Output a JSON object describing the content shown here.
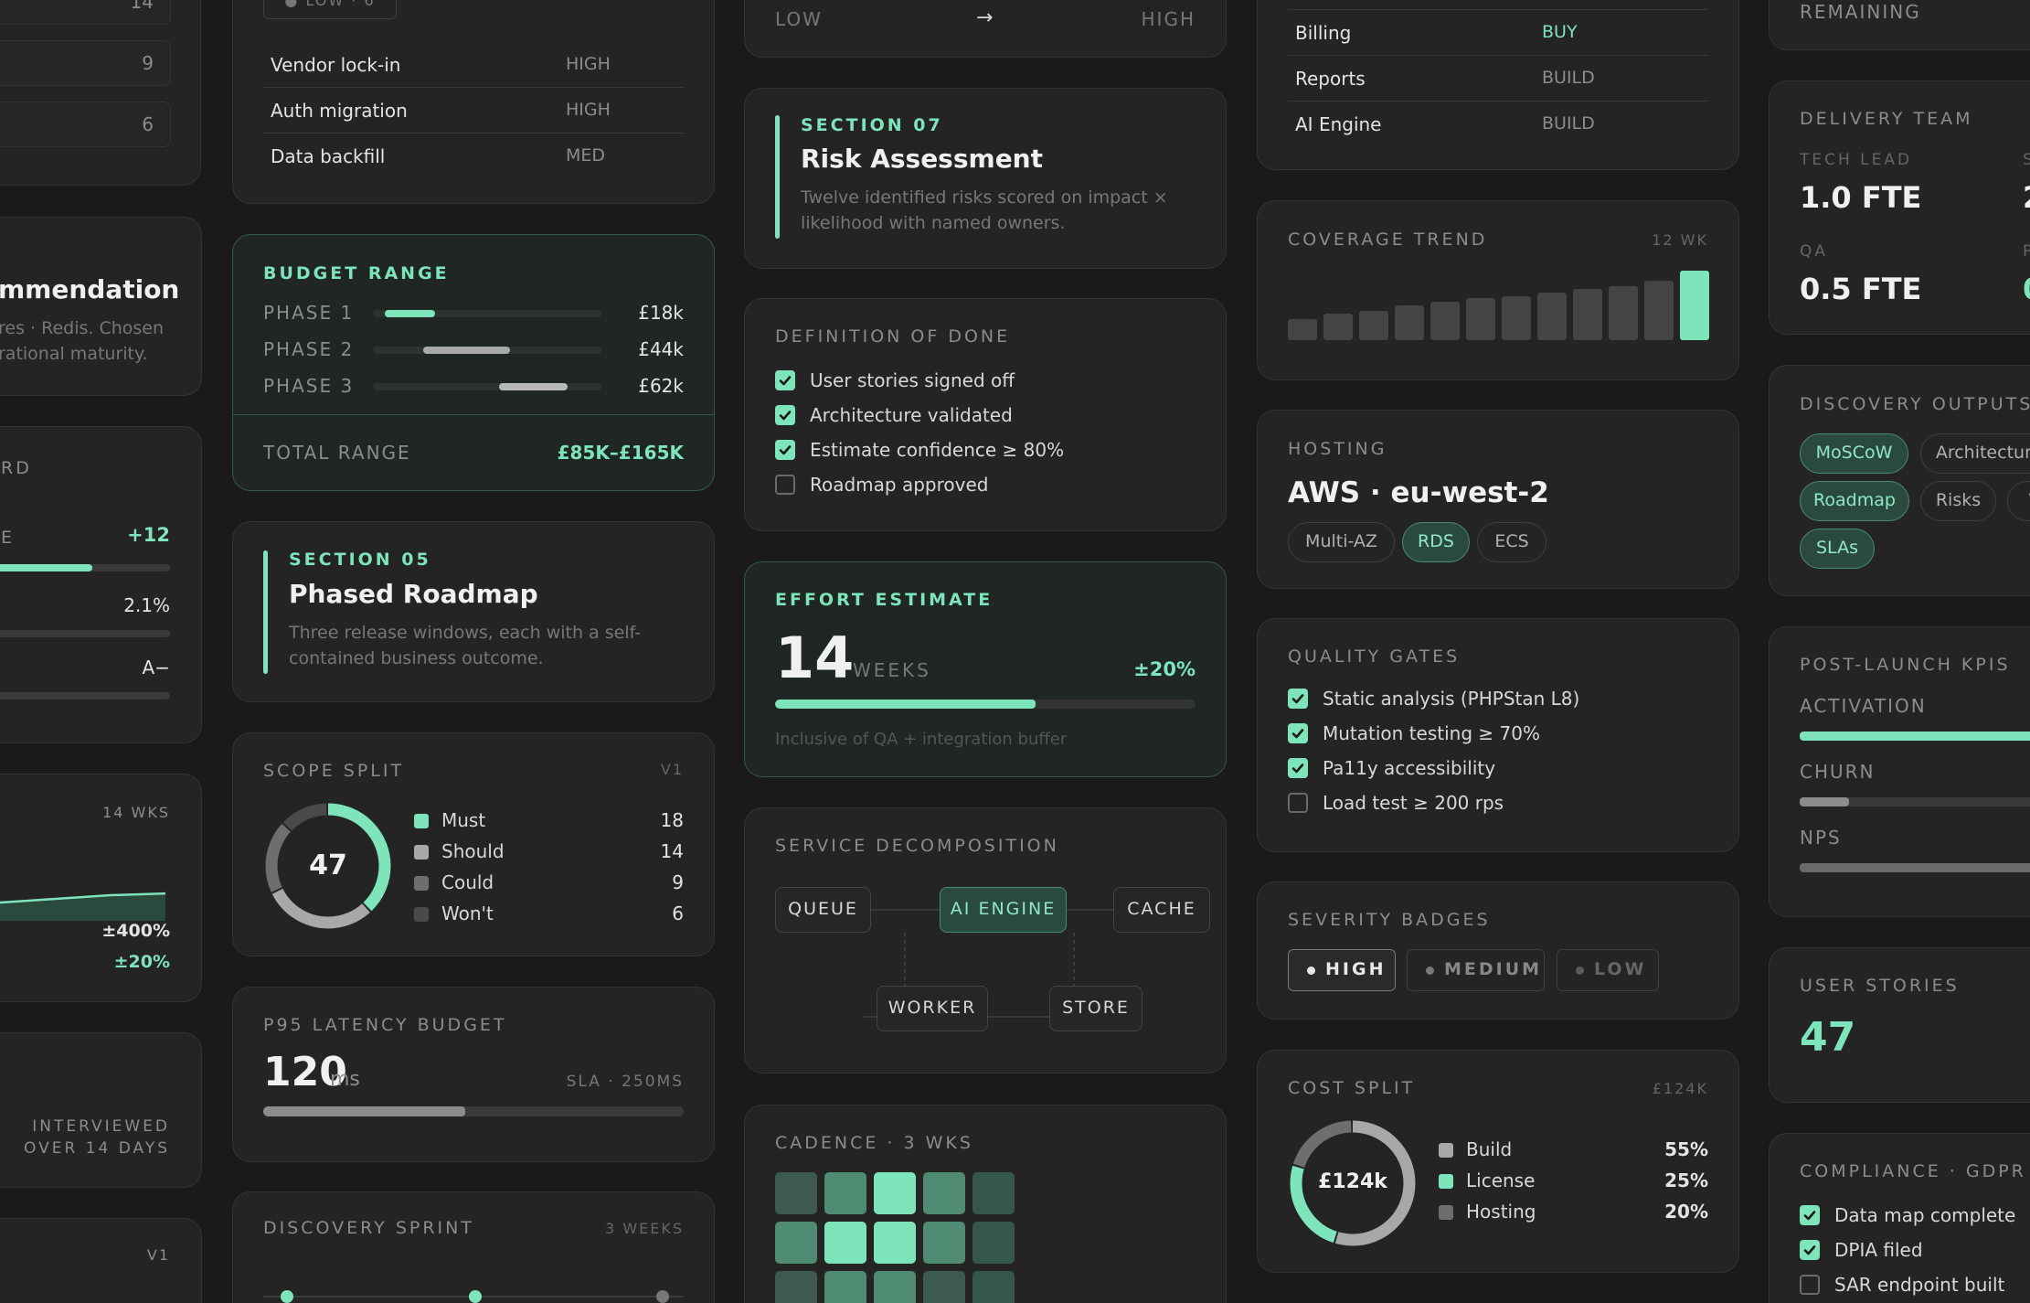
{
  "colors": {
    "accent": "#7de4bb",
    "card": "#242424",
    "muted": "#8c8c8c"
  },
  "c1": {
    "top_nums": [
      "14",
      "9",
      "6"
    ],
    "recommendation": {
      "title": "mmendation",
      "desc1": "res · Redis. Chosen",
      "desc2": "rational maturity."
    },
    "card_label": "RD",
    "metric1_suffix": "E",
    "metric1_value": "+12",
    "metric1_fill": 0.62,
    "metric2_value": "2.1%",
    "metric3_value": "A−",
    "trend_label": "14 WKS",
    "trend_v1": "±400%",
    "trend_v2": "±20%",
    "interviewed1": "INTERVIEWED",
    "interviewed2": "OVER 14 DAYS",
    "bottom_label": "V1"
  },
  "c2": {
    "risk_pill": "● LOW · 6",
    "risks": [
      {
        "name": "Vendor lock-in",
        "level": "HIGH"
      },
      {
        "name": "Auth migration",
        "level": "HIGH"
      },
      {
        "name": "Data backfill",
        "level": "MED"
      }
    ],
    "budget": {
      "label": "BUDGET RANGE",
      "phases": [
        {
          "name": "PHASE 1",
          "value": "£18k",
          "start": 0.05,
          "end": 0.27
        },
        {
          "name": "PHASE 2",
          "value": "£44k",
          "start": 0.22,
          "end": 0.6
        },
        {
          "name": "PHASE 3",
          "value": "£62k",
          "start": 0.55,
          "end": 0.85
        }
      ],
      "total_label": "TOTAL RANGE",
      "total_value": "£85K–£165K"
    },
    "roadmap": {
      "section": "SECTION 05",
      "title": "Phased Roadmap",
      "desc1": "Three release windows, each with a self-",
      "desc2": "contained business outcome."
    },
    "scope": {
      "label": "SCOPE SPLIT",
      "version": "V1",
      "total": "47",
      "items": [
        {
          "name": "Must",
          "value": "18",
          "color": "#7de4bb"
        },
        {
          "name": "Should",
          "value": "14",
          "color": "#a8a8a8"
        },
        {
          "name": "Could",
          "value": "9",
          "color": "#6e6e6e"
        },
        {
          "name": "Won't",
          "value": "6",
          "color": "#4a4a4a"
        }
      ]
    },
    "latency": {
      "label": "P95 LATENCY BUDGET",
      "value": "120",
      "unit": "ms",
      "sla": "SLA · 250MS",
      "fill": 0.48
    },
    "sprint": {
      "label": "DISCOVERY SPRINT",
      "weeks": "3 WEEKS"
    }
  },
  "c3": {
    "range_low": "LOW",
    "range_arrow": "→",
    "range_high": "HIGH",
    "risk": {
      "section": "SECTION 07",
      "title": "Risk Assessment",
      "desc1": "Twelve identified risks scored on impact ×",
      "desc2": "likelihood with named owners."
    },
    "dod": {
      "label": "DEFINITION OF DONE",
      "items": [
        {
          "text": "User stories signed off",
          "checked": true
        },
        {
          "text": "Architecture validated",
          "checked": true
        },
        {
          "text": "Estimate confidence ≥ 80%",
          "checked": true
        },
        {
          "text": "Roadmap approved",
          "checked": false
        }
      ]
    },
    "effort": {
      "label": "EFFORT ESTIMATE",
      "value": "14",
      "unit": "WEEKS",
      "variance": "±20%",
      "fill": 0.62,
      "note": "Inclusive of QA + integration buffer"
    },
    "services": {
      "label": "SERVICE DECOMPOSITION",
      "nodes": [
        "QUEUE",
        "AI ENGINE",
        "CACHE",
        "WORKER",
        "STORE"
      ]
    },
    "cadence": {
      "label": "CADENCE · 3 WKS"
    }
  },
  "c4": {
    "buildbuy": [
      {
        "name": "Billing",
        "value": "BUY"
      },
      {
        "name": "Reports",
        "value": "BUILD"
      },
      {
        "name": "AI Engine",
        "value": "BUILD"
      }
    ],
    "coverage": {
      "label": "COVERAGE TREND",
      "period": "12 WK",
      "values": [
        0.3,
        0.38,
        0.42,
        0.5,
        0.55,
        0.6,
        0.63,
        0.68,
        0.74,
        0.78,
        0.85,
        1.0
      ]
    },
    "hosting": {
      "label": "HOSTING",
      "title": "AWS · eu-west-2",
      "tags": [
        "Multi-AZ",
        "RDS",
        "ECS"
      ]
    },
    "gates": {
      "label": "QUALITY GATES",
      "items": [
        {
          "text": "Static analysis (PHPStan L8)",
          "checked": true
        },
        {
          "text": "Mutation testing ≥ 70%",
          "checked": true
        },
        {
          "text": "Pa11y accessibility",
          "checked": true
        },
        {
          "text": "Load test ≥ 200 rps",
          "checked": false
        }
      ]
    },
    "severity": {
      "label": "SEVERITY BADGES",
      "items": [
        "HIGH",
        "MEDIUM",
        "LOW"
      ]
    },
    "cost": {
      "label": "COST SPLIT",
      "total_right": "£124K",
      "center": "£124k",
      "items": [
        {
          "name": "Build",
          "value": "55%",
          "color": "#a8a8a8"
        },
        {
          "name": "License",
          "value": "25%",
          "color": "#7de4bb"
        },
        {
          "name": "Hosting",
          "value": "20%",
          "color": "#6e6e6e"
        }
      ]
    }
  },
  "c5": {
    "remaining": "REMAINING",
    "team": {
      "label": "DELIVERY TEAM",
      "roles": [
        {
          "role": "TECH LEAD",
          "value": "1.0 FTE"
        },
        {
          "role": "QA",
          "value": "0.5 FTE"
        }
      ],
      "cut1": "S",
      "cut1v": "2",
      "cut2": "P",
      "cut2v": "0"
    },
    "outputs": {
      "label": "DISCOVERY OUTPUTS",
      "tags": [
        "MoSCoW",
        "Architecture",
        "Roadmap",
        "Risks",
        "V",
        "SLAs"
      ]
    },
    "kpis": {
      "label": "POST-LAUNCH KPIS",
      "items": [
        {
          "name": "ACTIVATION",
          "fill": 0.95,
          "color": "#7de4bb"
        },
        {
          "name": "CHURN",
          "fill": 0.18,
          "color": "#8c8c8c"
        },
        {
          "name": "NPS",
          "fill": 0.95,
          "color": "#6a6a6a"
        }
      ]
    },
    "stories": {
      "label": "USER STORIES",
      "value": "47"
    },
    "compliance": {
      "label": "COMPLIANCE · GDPR",
      "items": [
        {
          "text": "Data map complete",
          "checked": true
        },
        {
          "text": "DPIA filed",
          "checked": true
        },
        {
          "text": "SAR endpoint built",
          "checked": false
        }
      ]
    }
  }
}
